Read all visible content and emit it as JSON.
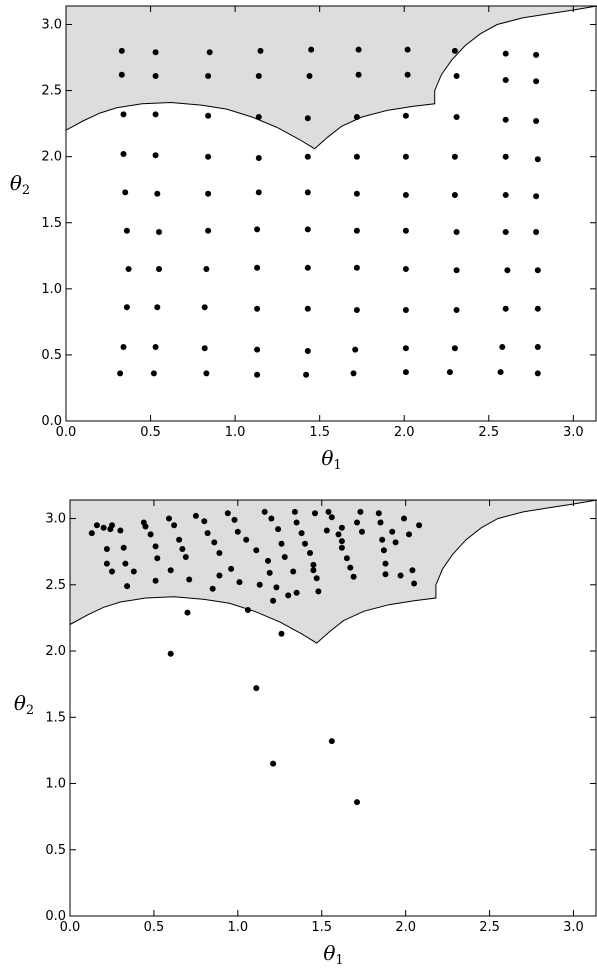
{
  "chart_data": [
    {
      "type": "scatter",
      "xlabel": "θ",
      "xlabel_sub": "1",
      "ylabel": "θ",
      "ylabel_sub": "2",
      "xlim": [
        0,
        3.14
      ],
      "ylim": [
        0,
        3.14
      ],
      "xticks": [
        "0.0",
        "0.5",
        "1.0",
        "1.5",
        "2.0",
        "2.5",
        "3.0"
      ],
      "yticks": [
        "0.0",
        "0.5",
        "1.0",
        "1.5",
        "2.0",
        "2.5",
        "3.0"
      ],
      "grid": false,
      "shaded_region_color": "#dddddd",
      "points": [
        [
          0.33,
          2.8
        ],
        [
          0.53,
          2.79
        ],
        [
          0.85,
          2.79
        ],
        [
          1.15,
          2.8
        ],
        [
          1.45,
          2.81
        ],
        [
          1.73,
          2.81
        ],
        [
          2.02,
          2.81
        ],
        [
          2.3,
          2.8
        ],
        [
          2.6,
          2.78
        ],
        [
          2.78,
          2.77
        ],
        [
          0.33,
          2.62
        ],
        [
          0.53,
          2.61
        ],
        [
          0.84,
          2.61
        ],
        [
          1.14,
          2.61
        ],
        [
          1.44,
          2.61
        ],
        [
          1.73,
          2.62
        ],
        [
          2.02,
          2.62
        ],
        [
          2.31,
          2.61
        ],
        [
          2.6,
          2.58
        ],
        [
          2.78,
          2.57
        ],
        [
          0.34,
          2.32
        ],
        [
          0.53,
          2.32
        ],
        [
          0.84,
          2.31
        ],
        [
          1.14,
          2.3
        ],
        [
          1.43,
          2.29
        ],
        [
          1.72,
          2.3
        ],
        [
          2.01,
          2.31
        ],
        [
          2.31,
          2.3
        ],
        [
          2.6,
          2.28
        ],
        [
          2.78,
          2.27
        ],
        [
          0.34,
          2.02
        ],
        [
          0.53,
          2.01
        ],
        [
          0.84,
          2.0
        ],
        [
          1.14,
          1.99
        ],
        [
          1.43,
          2.0
        ],
        [
          1.72,
          2.0
        ],
        [
          2.01,
          2.0
        ],
        [
          2.3,
          2.0
        ],
        [
          2.6,
          2.0
        ],
        [
          2.79,
          1.98
        ],
        [
          0.35,
          1.73
        ],
        [
          0.54,
          1.72
        ],
        [
          0.84,
          1.72
        ],
        [
          1.14,
          1.73
        ],
        [
          1.43,
          1.73
        ],
        [
          1.72,
          1.72
        ],
        [
          2.01,
          1.71
        ],
        [
          2.3,
          1.71
        ],
        [
          2.6,
          1.71
        ],
        [
          2.78,
          1.7
        ],
        [
          0.36,
          1.44
        ],
        [
          0.55,
          1.43
        ],
        [
          0.84,
          1.44
        ],
        [
          1.13,
          1.45
        ],
        [
          1.43,
          1.45
        ],
        [
          1.72,
          1.44
        ],
        [
          2.01,
          1.44
        ],
        [
          2.31,
          1.43
        ],
        [
          2.6,
          1.43
        ],
        [
          2.78,
          1.43
        ],
        [
          0.37,
          1.15
        ],
        [
          0.55,
          1.15
        ],
        [
          0.83,
          1.15
        ],
        [
          1.13,
          1.16
        ],
        [
          1.43,
          1.16
        ],
        [
          1.72,
          1.16
        ],
        [
          2.01,
          1.15
        ],
        [
          2.31,
          1.14
        ],
        [
          2.61,
          1.14
        ],
        [
          2.79,
          1.14
        ],
        [
          0.36,
          0.86
        ],
        [
          0.54,
          0.86
        ],
        [
          0.82,
          0.86
        ],
        [
          1.13,
          0.85
        ],
        [
          1.43,
          0.85
        ],
        [
          1.72,
          0.84
        ],
        [
          2.01,
          0.84
        ],
        [
          2.31,
          0.84
        ],
        [
          2.6,
          0.85
        ],
        [
          2.79,
          0.85
        ],
        [
          0.34,
          0.56
        ],
        [
          0.53,
          0.56
        ],
        [
          0.82,
          0.55
        ],
        [
          1.13,
          0.54
        ],
        [
          1.43,
          0.53
        ],
        [
          1.71,
          0.54
        ],
        [
          2.01,
          0.55
        ],
        [
          2.3,
          0.55
        ],
        [
          2.58,
          0.56
        ],
        [
          2.79,
          0.56
        ],
        [
          0.32,
          0.36
        ],
        [
          0.52,
          0.36
        ],
        [
          0.83,
          0.36
        ],
        [
          1.13,
          0.35
        ],
        [
          1.42,
          0.35
        ],
        [
          1.7,
          0.36
        ],
        [
          2.01,
          0.37
        ],
        [
          2.27,
          0.37
        ],
        [
          2.57,
          0.37
        ],
        [
          2.79,
          0.36
        ]
      ]
    },
    {
      "type": "scatter",
      "xlabel": "θ",
      "xlabel_sub": "1",
      "ylabel": "θ",
      "ylabel_sub": "2",
      "xlim": [
        0,
        3.14
      ],
      "ylim": [
        0,
        3.14
      ],
      "xticks": [
        "0.0",
        "0.5",
        "1.0",
        "1.5",
        "2.0",
        "2.5",
        "3.0"
      ],
      "yticks": [
        "0.0",
        "0.5",
        "1.0",
        "1.5",
        "2.0",
        "2.5",
        "3.0"
      ],
      "grid": false,
      "shaded_region_color": "#dddddd",
      "points": [
        [
          0.13,
          2.89
        ],
        [
          0.16,
          2.95
        ],
        [
          0.2,
          2.93
        ],
        [
          0.24,
          2.92
        ],
        [
          0.25,
          2.95
        ],
        [
          0.3,
          2.91
        ],
        [
          0.22,
          2.77
        ],
        [
          0.32,
          2.78
        ],
        [
          0.22,
          2.66
        ],
        [
          0.33,
          2.66
        ],
        [
          0.25,
          2.6
        ],
        [
          0.38,
          2.6
        ],
        [
          0.34,
          2.49
        ],
        [
          0.44,
          2.97
        ],
        [
          0.45,
          2.94
        ],
        [
          0.48,
          2.88
        ],
        [
          0.51,
          2.79
        ],
        [
          0.52,
          2.7
        ],
        [
          0.51,
          2.53
        ],
        [
          0.59,
          3.0
        ],
        [
          0.62,
          2.95
        ],
        [
          0.6,
          2.61
        ],
        [
          0.65,
          2.84
        ],
        [
          0.67,
          2.77
        ],
        [
          0.69,
          2.71
        ],
        [
          0.71,
          2.54
        ],
        [
          0.75,
          3.02
        ],
        [
          0.8,
          2.98
        ],
        [
          0.82,
          2.89
        ],
        [
          0.85,
          2.47
        ],
        [
          0.86,
          2.82
        ],
        [
          0.89,
          2.74
        ],
        [
          0.89,
          2.57
        ],
        [
          0.96,
          2.62
        ],
        [
          0.94,
          3.04
        ],
        [
          0.98,
          2.99
        ],
        [
          1.0,
          2.9
        ],
        [
          1.01,
          2.52
        ],
        [
          1.05,
          2.84
        ],
        [
          1.11,
          2.76
        ],
        [
          1.13,
          2.5
        ],
        [
          1.16,
          3.05
        ],
        [
          1.18,
          2.68
        ],
        [
          1.19,
          2.59
        ],
        [
          1.2,
          3.0
        ],
        [
          1.24,
          2.92
        ],
        [
          1.23,
          2.48
        ],
        [
          1.26,
          2.81
        ],
        [
          1.28,
          2.71
        ],
        [
          1.3,
          2.42
        ],
        [
          1.33,
          2.6
        ],
        [
          1.34,
          3.05
        ],
        [
          1.35,
          2.97
        ],
        [
          1.38,
          2.89
        ],
        [
          1.4,
          2.81
        ],
        [
          1.43,
          2.74
        ],
        [
          1.45,
          2.65
        ],
        [
          1.47,
          2.55
        ],
        [
          1.48,
          2.45
        ],
        [
          1.46,
          3.04
        ],
        [
          1.54,
          3.05
        ],
        [
          1.56,
          3.01
        ],
        [
          1.6,
          2.88
        ],
        [
          1.62,
          2.83
        ],
        [
          1.65,
          2.7
        ],
        [
          1.67,
          2.63
        ],
        [
          1.69,
          2.56
        ],
        [
          1.71,
          2.97
        ],
        [
          1.73,
          3.05
        ],
        [
          1.74,
          2.9
        ],
        [
          1.84,
          3.04
        ],
        [
          1.85,
          2.97
        ],
        [
          1.86,
          2.84
        ],
        [
          1.87,
          2.76
        ],
        [
          1.88,
          2.66
        ],
        [
          1.92,
          2.9
        ],
        [
          1.94,
          2.82
        ],
        [
          1.99,
          3.0
        ],
        [
          2.02,
          2.88
        ],
        [
          2.04,
          2.61
        ],
        [
          1.97,
          2.57
        ],
        [
          2.08,
          2.95
        ],
        [
          2.05,
          2.51
        ],
        [
          1.53,
          2.91
        ],
        [
          1.62,
          2.93
        ],
        [
          0.6,
          1.98
        ],
        [
          0.7,
          2.29
        ],
        [
          1.06,
          2.31
        ],
        [
          1.26,
          2.13
        ],
        [
          1.11,
          1.72
        ],
        [
          1.21,
          1.15
        ],
        [
          1.56,
          1.32
        ],
        [
          1.71,
          0.86
        ],
        [
          1.62,
          2.78
        ],
        [
          1.88,
          2.58
        ],
        [
          1.35,
          2.44
        ],
        [
          1.21,
          2.38
        ],
        [
          1.45,
          2.61
        ]
      ]
    }
  ]
}
